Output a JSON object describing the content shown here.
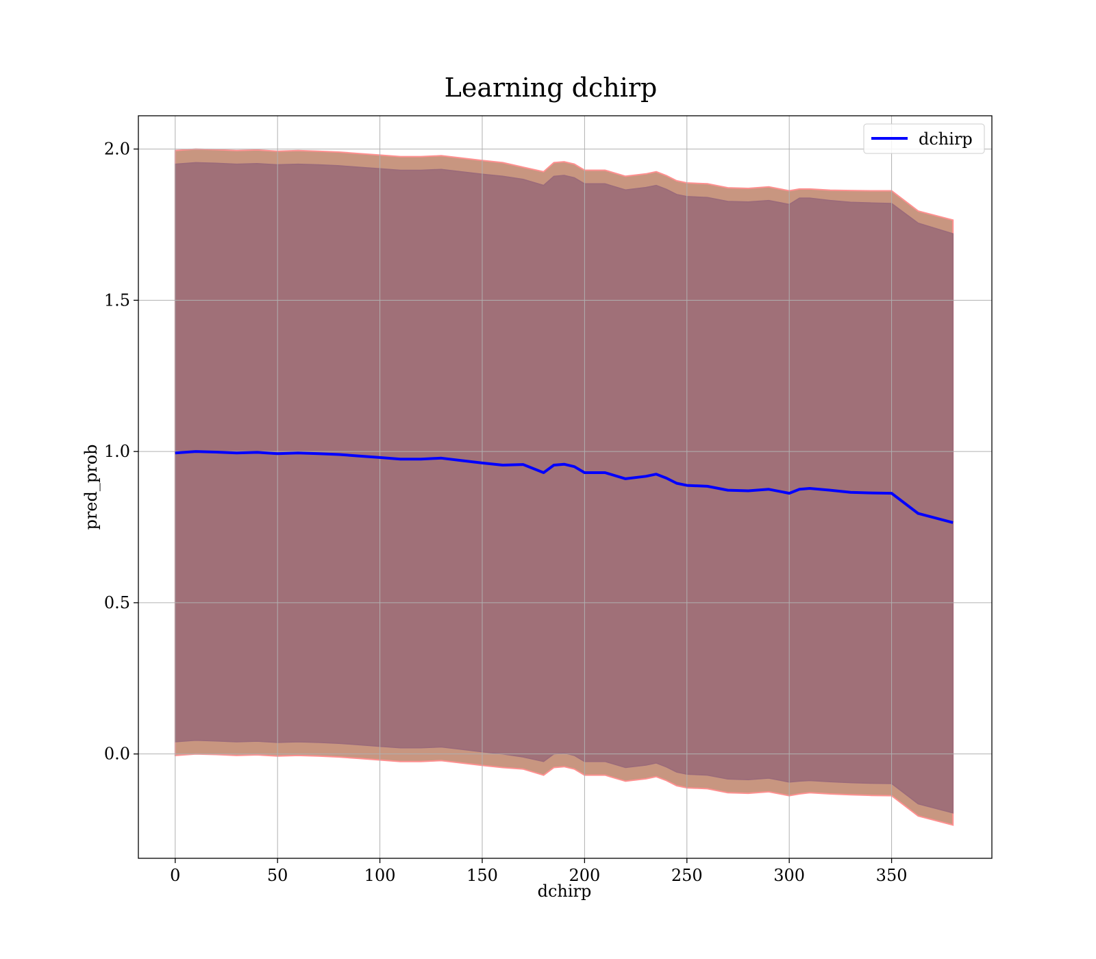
{
  "chart_data": {
    "type": "line",
    "title": "Learning dchirp",
    "xlabel": "dchirp",
    "ylabel": "pred_prob",
    "xlim": [
      -18,
      399
    ],
    "ylim": [
      -0.345,
      2.11
    ],
    "xticks": [
      0,
      50,
      100,
      150,
      200,
      250,
      300,
      350
    ],
    "xtick_labels": [
      "0",
      "50",
      "100",
      "150",
      "200",
      "250",
      "300",
      "350"
    ],
    "yticks": [
      0.0,
      0.5,
      1.0,
      1.5,
      2.0
    ],
    "ytick_labels": [
      "0.0",
      "0.5",
      "1.0",
      "1.5",
      "2.0"
    ],
    "grid": true,
    "legend_position": "top-right",
    "colors": {
      "line": "#0000ff",
      "inner_band": "#a07078",
      "outer_band": "#c89680",
      "outer_edge": "#ff9090",
      "inner_edge": "#9a6a7a",
      "grid": "#b0b0b0"
    },
    "series": [
      {
        "name": "dchirp",
        "x": [
          0,
          10,
          20,
          30,
          40,
          50,
          60,
          70,
          80,
          90,
          100,
          110,
          120,
          130,
          140,
          150,
          160,
          170,
          180,
          185,
          190,
          195,
          200,
          210,
          220,
          230,
          235,
          240,
          245,
          250,
          260,
          270,
          280,
          290,
          300,
          305,
          310,
          320,
          330,
          340,
          350,
          363,
          380
        ],
        "values": [
          0.995,
          1.0,
          0.998,
          0.995,
          0.997,
          0.993,
          0.995,
          0.993,
          0.99,
          0.985,
          0.98,
          0.975,
          0.975,
          0.978,
          0.97,
          0.962,
          0.955,
          0.957,
          0.93,
          0.955,
          0.958,
          0.95,
          0.93,
          0.93,
          0.91,
          0.918,
          0.925,
          0.912,
          0.895,
          0.888,
          0.885,
          0.872,
          0.87,
          0.875,
          0.862,
          0.875,
          0.878,
          0.872,
          0.865,
          0.863,
          0.862,
          0.795,
          0.765
        ]
      }
    ],
    "bands": [
      {
        "label_shown": false,
        "upper": [
          1.995,
          2.0,
          1.998,
          1.995,
          1.997,
          1.993,
          1.995,
          1.993,
          1.99,
          1.985,
          1.98,
          1.975,
          1.975,
          1.978,
          1.97,
          1.962,
          1.955,
          1.94,
          1.925,
          1.955,
          1.958,
          1.95,
          1.93,
          1.93,
          1.91,
          1.918,
          1.925,
          1.912,
          1.895,
          1.888,
          1.885,
          1.872,
          1.87,
          1.875,
          1.862,
          1.868,
          1.868,
          1.864,
          1.863,
          1.862,
          1.862,
          1.795,
          1.765
        ],
        "lower": [
          -0.005,
          0.0,
          -0.002,
          -0.005,
          -0.003,
          -0.007,
          -0.005,
          -0.007,
          -0.01,
          -0.015,
          -0.02,
          -0.025,
          -0.025,
          -0.022,
          -0.03,
          -0.038,
          -0.045,
          -0.05,
          -0.07,
          -0.045,
          -0.042,
          -0.05,
          -0.07,
          -0.07,
          -0.09,
          -0.082,
          -0.075,
          -0.088,
          -0.105,
          -0.112,
          -0.115,
          -0.128,
          -0.13,
          -0.125,
          -0.138,
          -0.132,
          -0.128,
          -0.132,
          -0.135,
          -0.137,
          -0.138,
          -0.205,
          -0.235
        ]
      },
      {
        "label_shown": false,
        "upper": [
          1.95,
          1.955,
          1.953,
          1.95,
          1.952,
          1.948,
          1.95,
          1.948,
          1.945,
          1.94,
          1.935,
          1.93,
          1.93,
          1.933,
          1.925,
          1.917,
          1.91,
          1.9,
          1.88,
          1.91,
          1.913,
          1.905,
          1.885,
          1.885,
          1.865,
          1.873,
          1.88,
          1.867,
          1.85,
          1.843,
          1.84,
          1.827,
          1.825,
          1.83,
          1.817,
          1.838,
          1.838,
          1.83,
          1.824,
          1.822,
          1.82,
          1.755,
          1.72
        ],
        "lower": [
          0.04,
          0.045,
          0.043,
          0.04,
          0.042,
          0.038,
          0.04,
          0.038,
          0.035,
          0.03,
          0.025,
          0.02,
          0.02,
          0.023,
          0.015,
          0.007,
          0.0,
          -0.01,
          -0.025,
          0.0,
          0.003,
          -0.005,
          -0.025,
          -0.025,
          -0.045,
          -0.037,
          -0.03,
          -0.043,
          -0.06,
          -0.067,
          -0.07,
          -0.083,
          -0.085,
          -0.08,
          -0.093,
          -0.09,
          -0.088,
          -0.092,
          -0.095,
          -0.097,
          -0.098,
          -0.165,
          -0.195
        ]
      }
    ]
  }
}
